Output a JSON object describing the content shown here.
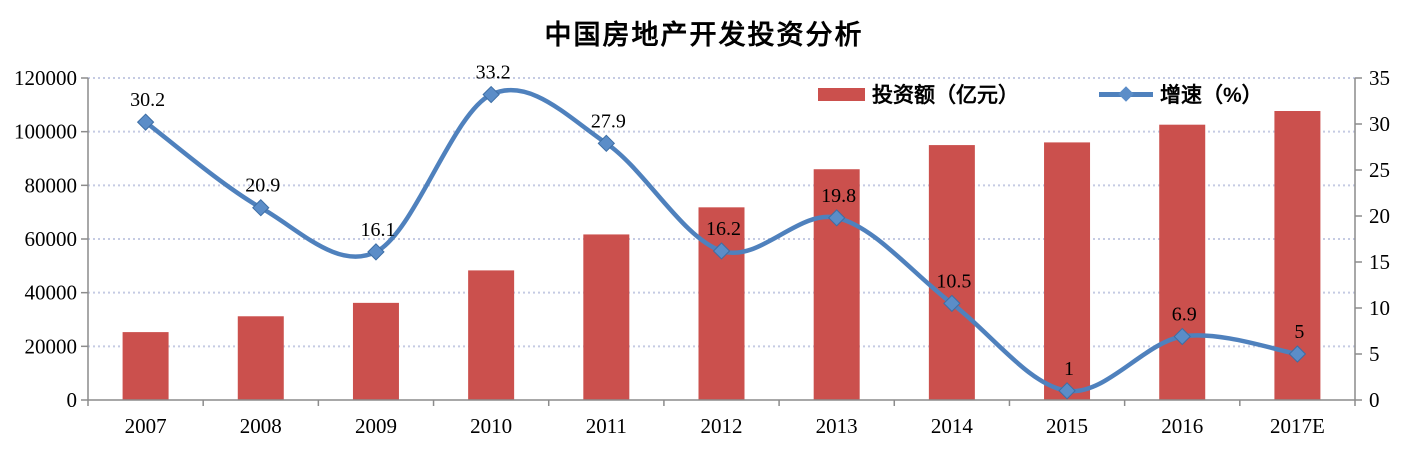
{
  "title": "中国房地产开发投资分析",
  "legend": [
    {
      "label": "投资额（亿元）",
      "type": "bar"
    },
    {
      "label": "增速（%）",
      "type": "line"
    }
  ],
  "colors": {
    "bar": "#CB504D",
    "line": "#4F81BD",
    "marker_fill": "#5B8DC8",
    "marker_stroke": "#3D6EA5",
    "grid": "#C5CBE3",
    "axis": "#8C8C8C",
    "text": "#000000"
  },
  "chart_data": {
    "type": "bar+line combo",
    "title": "中国房地产开发投资分析",
    "categories": [
      "2007",
      "2008",
      "2009",
      "2010",
      "2011",
      "2012",
      "2013",
      "2014",
      "2015",
      "2016",
      "2017E"
    ],
    "series": [
      {
        "name": "投资额（亿元）",
        "type": "bar",
        "axis": "left",
        "values": [
          25300,
          31200,
          36200,
          48300,
          61700,
          71800,
          86000,
          95000,
          96000,
          102600,
          107700
        ]
      },
      {
        "name": "增速（%）",
        "type": "line",
        "axis": "right",
        "values": [
          30.2,
          20.9,
          16.1,
          33.2,
          27.9,
          16.2,
          19.8,
          10.5,
          1,
          6.9,
          5
        ],
        "data_labels": [
          "30.2",
          "20.9",
          "16.1",
          "33.2",
          "27.9",
          "16.2",
          "19.8",
          "10.5",
          "1",
          "6.9",
          "5"
        ]
      }
    ],
    "left_axis": {
      "min": 0,
      "max": 120000,
      "step": 20000,
      "tick_labels": [
        "0",
        "20000",
        "40000",
        "60000",
        "80000",
        "100000",
        "120000"
      ]
    },
    "right_axis": {
      "min": 0,
      "max": 35,
      "step": 5,
      "tick_labels": [
        "0",
        "5",
        "10",
        "15",
        "20",
        "25",
        "30",
        "35"
      ]
    },
    "grid": {
      "horizontal": true,
      "style": "dotted"
    },
    "legend_position": "top-inside-right"
  }
}
